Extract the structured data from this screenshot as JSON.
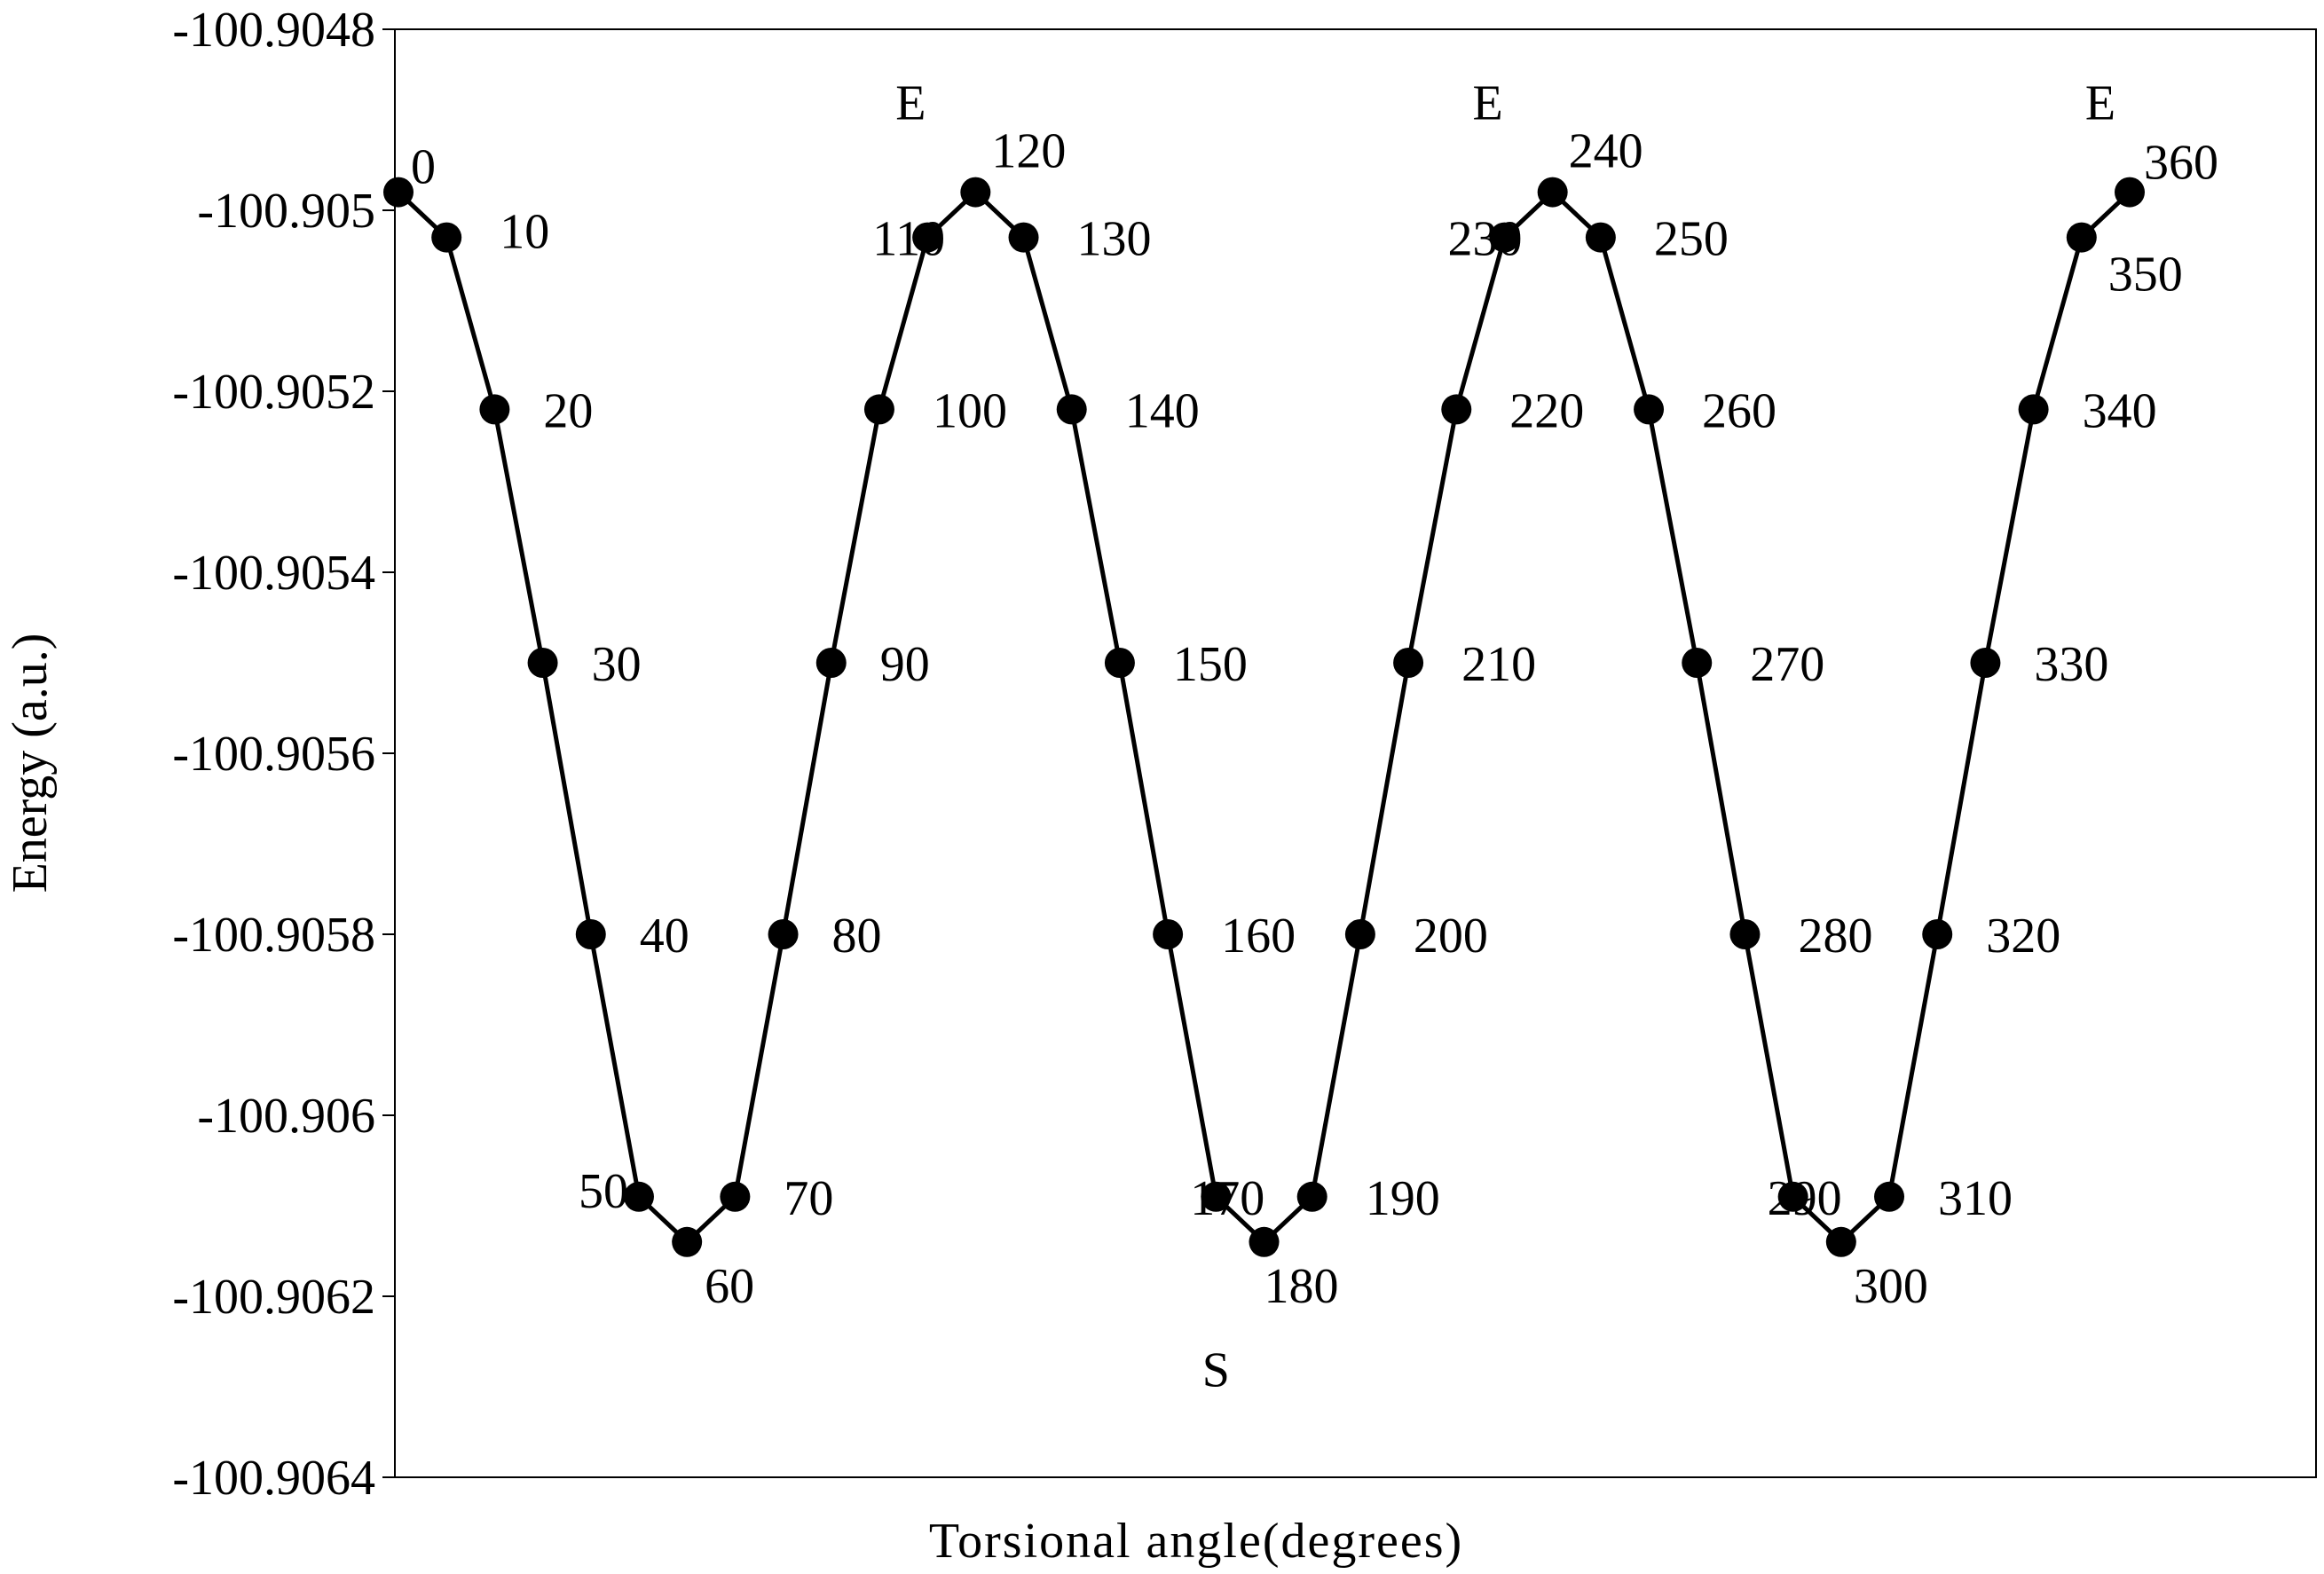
{
  "chart_data": {
    "type": "line",
    "title": "",
    "xlabel": "Torsional angle(degrees)",
    "ylabel": "Energy (a.u.)",
    "ylim": [
      -100.9064,
      -100.9048
    ],
    "y_ticks": [
      "-100.9048",
      "-100.905",
      "-100.9052",
      "-100.9054",
      "-100.9056",
      "-100.9058",
      "-100.906",
      "-100.9062",
      "-100.9064"
    ],
    "grid": false,
    "legend": "none",
    "series": [
      {
        "x": [
          0,
          10,
          20,
          30,
          40,
          50,
          60,
          70,
          80,
          90,
          100,
          110,
          120,
          130,
          140,
          150,
          160,
          170,
          180,
          190,
          200,
          210,
          220,
          230,
          240,
          250,
          260,
          270,
          280,
          290,
          300,
          310,
          320,
          330,
          340,
          350,
          360
        ],
        "y": [
          -100.90498,
          -100.90503,
          -100.90522,
          -100.9055,
          -100.9058,
          -100.90609,
          -100.90614,
          -100.90609,
          -100.9058,
          -100.9055,
          -100.90522,
          -100.90503,
          -100.90498,
          -100.90503,
          -100.90522,
          -100.9055,
          -100.9058,
          -100.90609,
          -100.90614,
          -100.90609,
          -100.9058,
          -100.9055,
          -100.90522,
          -100.90503,
          -100.90498,
          -100.90503,
          -100.90522,
          -100.9055,
          -100.9058,
          -100.90609,
          -100.90614,
          -100.90609,
          -100.9058,
          -100.9055,
          -100.90522,
          -100.90503,
          -100.90498
        ],
        "point_labels": [
          "0",
          "10",
          "20",
          "30",
          "40",
          "50",
          "60",
          "70",
          "80",
          "90",
          "100",
          "110",
          "120",
          "130",
          "140",
          "150",
          "160",
          "170",
          "180",
          "190",
          "200",
          "210",
          "220",
          "230",
          "240",
          "250",
          "260",
          "270",
          "280",
          "290",
          "300",
          "310",
          "320",
          "330",
          "340",
          "350",
          "360"
        ]
      }
    ],
    "annotations": [
      {
        "text": "E",
        "x": 120,
        "y": -100.90488
      },
      {
        "text": "E",
        "x": 240,
        "y": -100.90488
      },
      {
        "text": "E",
        "x": 360,
        "y": -100.90488
      },
      {
        "text": "S",
        "x": 170,
        "y": -100.90628
      }
    ],
    "colors": {
      "line": "#000000",
      "marker": "#000000",
      "axis": "#000000",
      "background": "#ffffff"
    }
  }
}
